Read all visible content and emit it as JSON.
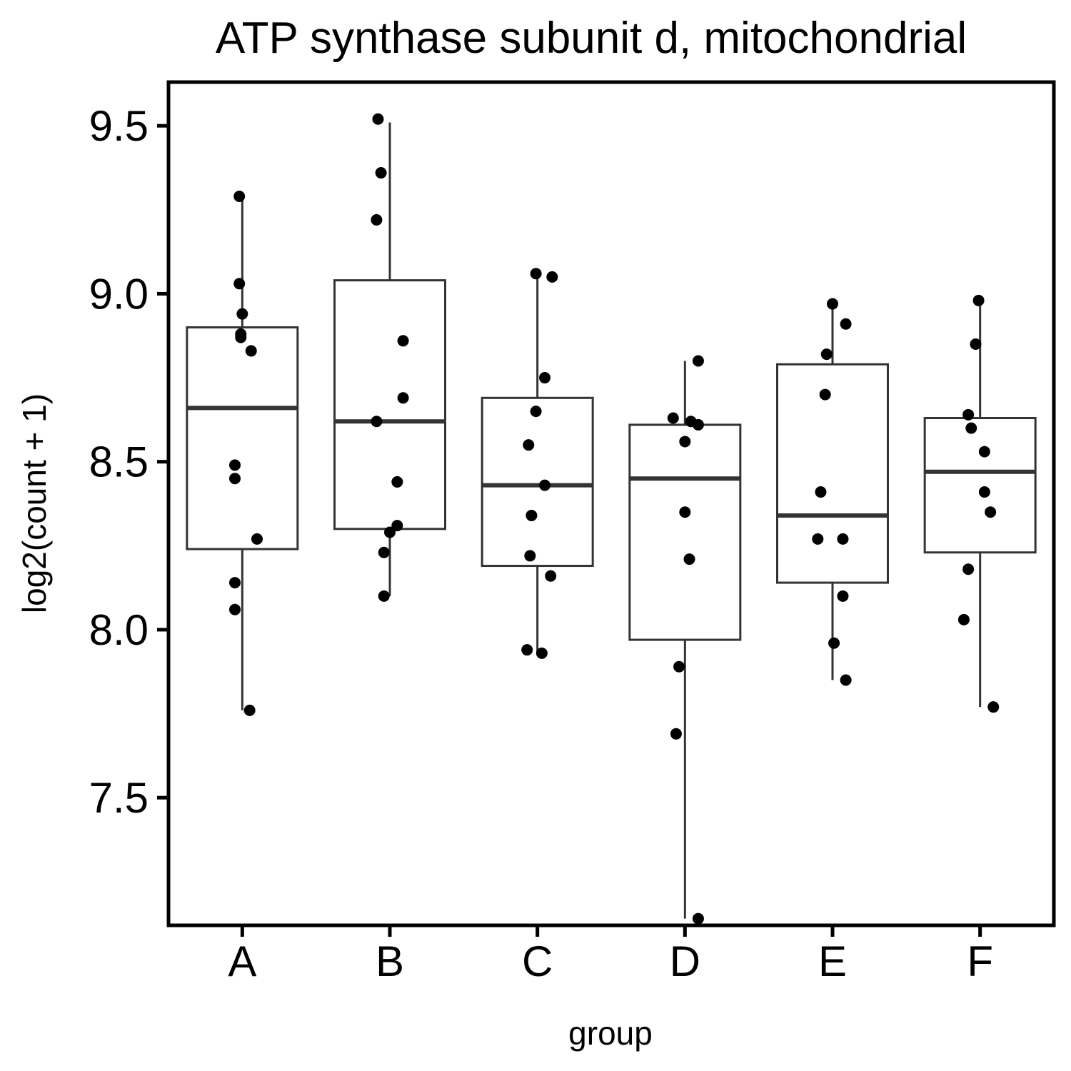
{
  "chart_data": {
    "type": "box",
    "title": "ATP synthase subunit d, mitochondrial",
    "xlabel": "group",
    "ylabel": "log2(count + 1)",
    "ylim": [
      7.12,
      9.63
    ],
    "yticks": [
      7.5,
      8.0,
      8.5,
      9.0,
      9.5
    ],
    "ytick_labels": [
      "7.5",
      "8.0",
      "8.5",
      "9.0",
      "9.5"
    ],
    "grid": false,
    "legend": "none",
    "colors": {
      "box_stroke": "#333333",
      "point": "#000000",
      "axis": "#000000",
      "background": "#ffffff"
    },
    "categories": [
      "A",
      "B",
      "C",
      "D",
      "E",
      "F"
    ],
    "groups": [
      {
        "name": "A",
        "box": {
          "lower_whisker": 7.76,
          "q1": 8.24,
          "median": 8.66,
          "q3": 8.9,
          "upper_whisker": 9.29
        },
        "points": [
          {
            "jitter": -0.02,
            "y": 9.29
          },
          {
            "jitter": -0.02,
            "y": 9.03
          },
          {
            "jitter": 0.0,
            "y": 8.94
          },
          {
            "jitter": -0.01,
            "y": 8.88
          },
          {
            "jitter": -0.01,
            "y": 8.87
          },
          {
            "jitter": 0.06,
            "y": 8.83
          },
          {
            "jitter": -0.05,
            "y": 8.49
          },
          {
            "jitter": -0.05,
            "y": 8.45
          },
          {
            "jitter": 0.1,
            "y": 8.27
          },
          {
            "jitter": -0.05,
            "y": 8.14
          },
          {
            "jitter": -0.05,
            "y": 8.06
          },
          {
            "jitter": 0.05,
            "y": 7.76
          }
        ]
      },
      {
        "name": "B",
        "box": {
          "lower_whisker": 8.1,
          "q1": 8.3,
          "median": 8.62,
          "q3": 9.04,
          "upper_whisker": 9.51
        },
        "points": [
          {
            "jitter": -0.08,
            "y": 9.52
          },
          {
            "jitter": -0.06,
            "y": 9.36
          },
          {
            "jitter": -0.09,
            "y": 9.22
          },
          {
            "jitter": 0.09,
            "y": 8.86
          },
          {
            "jitter": 0.09,
            "y": 8.69
          },
          {
            "jitter": -0.09,
            "y": 8.62
          },
          {
            "jitter": 0.05,
            "y": 8.44
          },
          {
            "jitter": 0.05,
            "y": 8.31
          },
          {
            "jitter": 0.0,
            "y": 8.29
          },
          {
            "jitter": -0.04,
            "y": 8.23
          },
          {
            "jitter": -0.04,
            "y": 8.1
          }
        ]
      },
      {
        "name": "C",
        "box": {
          "lower_whisker": 7.93,
          "q1": 8.19,
          "median": 8.43,
          "q3": 8.69,
          "upper_whisker": 9.06
        },
        "points": [
          {
            "jitter": -0.01,
            "y": 9.06
          },
          {
            "jitter": 0.1,
            "y": 9.05
          },
          {
            "jitter": 0.05,
            "y": 8.75
          },
          {
            "jitter": -0.01,
            "y": 8.65
          },
          {
            "jitter": -0.06,
            "y": 8.55
          },
          {
            "jitter": 0.05,
            "y": 8.43
          },
          {
            "jitter": -0.04,
            "y": 8.34
          },
          {
            "jitter": -0.05,
            "y": 8.22
          },
          {
            "jitter": 0.09,
            "y": 8.16
          },
          {
            "jitter": -0.07,
            "y": 7.94
          },
          {
            "jitter": 0.03,
            "y": 7.93
          }
        ]
      },
      {
        "name": "D",
        "box": {
          "lower_whisker": 7.14,
          "q1": 7.97,
          "median": 8.45,
          "q3": 8.61,
          "upper_whisker": 8.8
        },
        "points": [
          {
            "jitter": 0.09,
            "y": 8.8
          },
          {
            "jitter": -0.08,
            "y": 8.63
          },
          {
            "jitter": 0.04,
            "y": 8.62
          },
          {
            "jitter": 0.09,
            "y": 8.61
          },
          {
            "jitter": 0.0,
            "y": 8.56
          },
          {
            "jitter": 0.0,
            "y": 8.35
          },
          {
            "jitter": 0.03,
            "y": 8.21
          },
          {
            "jitter": -0.04,
            "y": 7.89
          },
          {
            "jitter": -0.06,
            "y": 7.69
          },
          {
            "jitter": 0.09,
            "y": 7.14
          }
        ]
      },
      {
        "name": "E",
        "box": {
          "lower_whisker": 7.85,
          "q1": 8.14,
          "median": 8.34,
          "q3": 8.79,
          "upper_whisker": 8.97
        },
        "points": [
          {
            "jitter": 0.0,
            "y": 8.97
          },
          {
            "jitter": 0.09,
            "y": 8.91
          },
          {
            "jitter": -0.04,
            "y": 8.82
          },
          {
            "jitter": -0.05,
            "y": 8.7
          },
          {
            "jitter": -0.08,
            "y": 8.41
          },
          {
            "jitter": -0.1,
            "y": 8.27
          },
          {
            "jitter": 0.07,
            "y": 8.27
          },
          {
            "jitter": 0.07,
            "y": 8.1
          },
          {
            "jitter": 0.01,
            "y": 7.96
          },
          {
            "jitter": 0.09,
            "y": 7.85
          }
        ]
      },
      {
        "name": "F",
        "box": {
          "lower_whisker": 7.77,
          "q1": 8.23,
          "median": 8.47,
          "q3": 8.63,
          "upper_whisker": 8.98
        },
        "points": [
          {
            "jitter": -0.01,
            "y": 8.98
          },
          {
            "jitter": -0.03,
            "y": 8.85
          },
          {
            "jitter": -0.08,
            "y": 8.64
          },
          {
            "jitter": -0.06,
            "y": 8.6
          },
          {
            "jitter": 0.03,
            "y": 8.53
          },
          {
            "jitter": 0.03,
            "y": 8.41
          },
          {
            "jitter": 0.07,
            "y": 8.35
          },
          {
            "jitter": -0.08,
            "y": 8.18
          },
          {
            "jitter": -0.11,
            "y": 8.03
          },
          {
            "jitter": 0.09,
            "y": 7.77
          }
        ]
      }
    ]
  }
}
